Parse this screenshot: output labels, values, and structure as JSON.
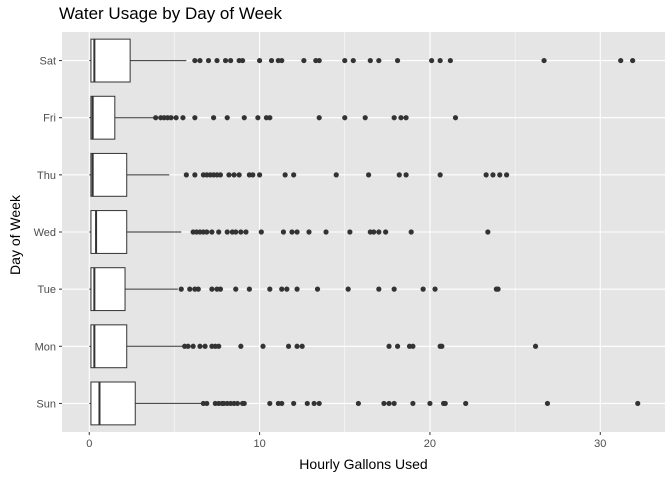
{
  "chart_data": {
    "type": "boxplot",
    "orientation": "horizontal",
    "title": "Water Usage by Day of Week",
    "xlabel": "Hourly Gallons Used",
    "ylabel": "Day of Week",
    "xlim": [
      -1.6,
      33.8
    ],
    "x_ticks": [
      0,
      10,
      20,
      30
    ],
    "categories": [
      "Sun",
      "Mon",
      "Tue",
      "Wed",
      "Thu",
      "Fri",
      "Sat"
    ],
    "grid": true,
    "background": "#e5e5e5",
    "grid_color": "#ffffff",
    "box_fill": "#ffffff",
    "box_line": "#333333",
    "outlier_color": "#333333",
    "boxes": [
      {
        "day": "Sun",
        "min": 0.0,
        "q1": 0.1,
        "median": 0.6,
        "q3": 2.7,
        "whisker_high": 6.6,
        "outliers": [
          6.7,
          6.9,
          7.4,
          7.6,
          7.8,
          7.9,
          8.1,
          8.3,
          8.5,
          8.7,
          9.0,
          9.1,
          10.6,
          11.1,
          11.3,
          12.0,
          12.8,
          13.2,
          13.5,
          15.8,
          17.3,
          17.6,
          17.9,
          19.0,
          20.0,
          20.8,
          20.9,
          22.1,
          26.9,
          32.2
        ]
      },
      {
        "day": "Mon",
        "min": 0.0,
        "q1": 0.1,
        "median": 0.3,
        "q3": 2.2,
        "whisker_high": 5.5,
        "outliers": [
          5.6,
          5.8,
          6.1,
          6.5,
          6.8,
          7.2,
          7.4,
          7.6,
          8.9,
          10.2,
          11.7,
          12.2,
          12.5,
          17.6,
          18.1,
          18.8,
          19.0,
          20.6,
          20.7,
          26.2
        ]
      },
      {
        "day": "Tue",
        "min": 0.0,
        "q1": 0.1,
        "median": 0.3,
        "q3": 2.1,
        "whisker_high": 5.2,
        "outliers": [
          5.4,
          5.9,
          6.2,
          6.4,
          7.2,
          7.5,
          7.7,
          8.6,
          9.4,
          10.6,
          11.3,
          11.6,
          12.2,
          13.4,
          15.2,
          17.0,
          17.9,
          19.6,
          20.3,
          23.9,
          24.0
        ]
      },
      {
        "day": "Wed",
        "min": 0.0,
        "q1": 0.1,
        "median": 0.4,
        "q3": 2.2,
        "whisker_high": 5.4,
        "outliers": [
          6.1,
          6.3,
          6.5,
          6.7,
          6.9,
          7.2,
          7.6,
          8.1,
          8.4,
          8.6,
          8.9,
          9.2,
          10.1,
          11.4,
          11.9,
          12.2,
          12.9,
          13.9,
          15.3,
          16.5,
          16.7,
          17.0,
          17.4,
          18.9,
          23.4
        ]
      },
      {
        "day": "Thu",
        "min": 0.0,
        "q1": 0.1,
        "median": 0.2,
        "q3": 2.2,
        "whisker_high": 4.7,
        "outliers": [
          5.7,
          6.2,
          6.7,
          6.9,
          7.1,
          7.3,
          7.5,
          7.7,
          8.2,
          8.5,
          8.8,
          9.4,
          9.6,
          10.0,
          11.5,
          12.0,
          14.5,
          16.4,
          18.2,
          18.6,
          20.6,
          23.3,
          23.7,
          24.1,
          24.5
        ]
      },
      {
        "day": "Fri",
        "min": 0.0,
        "q1": 0.1,
        "median": 0.2,
        "q3": 1.5,
        "whisker_high": 3.8,
        "outliers": [
          3.9,
          4.2,
          4.4,
          4.6,
          4.8,
          5.1,
          5.5,
          6.2,
          7.3,
          8.1,
          9.1,
          9.9,
          10.4,
          10.6,
          13.5,
          15.0,
          16.2,
          17.9,
          18.3,
          18.6,
          21.5
        ]
      },
      {
        "day": "Sat",
        "min": 0.0,
        "q1": 0.1,
        "median": 0.3,
        "q3": 2.4,
        "whisker_high": 5.7,
        "outliers": [
          6.2,
          6.5,
          7.0,
          7.5,
          8.0,
          8.3,
          8.8,
          9.0,
          10.0,
          10.7,
          11.1,
          11.3,
          12.6,
          13.3,
          13.5,
          15.0,
          15.5,
          16.5,
          17.0,
          18.1,
          20.1,
          20.6,
          21.2,
          26.7,
          31.2,
          31.9
        ]
      }
    ]
  }
}
